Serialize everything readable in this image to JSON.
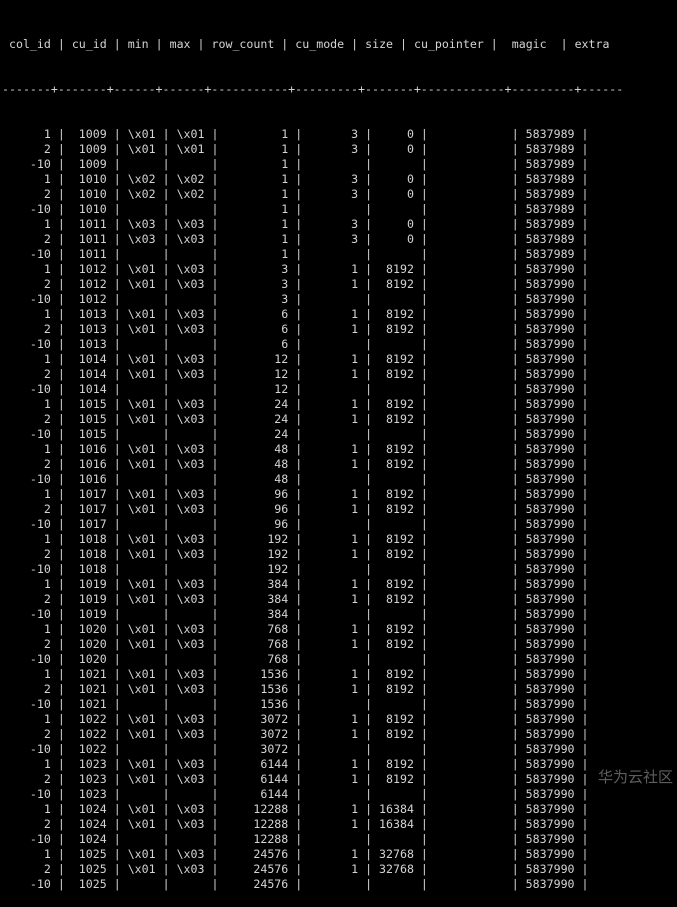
{
  "columns": [
    "col_id",
    "cu_id",
    "min",
    "max",
    "row_count",
    "cu_mode",
    "size",
    "cu_pointer",
    "magic",
    "extra"
  ],
  "widths": [
    6,
    5,
    4,
    4,
    9,
    7,
    5,
    10,
    7,
    5
  ],
  "align": [
    "r",
    "r",
    "l",
    "l",
    "r",
    "r",
    "r",
    "l",
    "r",
    "l"
  ],
  "rows": [
    [
      "1",
      "1009",
      "\\x01",
      "\\x01",
      "1",
      "3",
      "0",
      "",
      "5837989",
      ""
    ],
    [
      "2",
      "1009",
      "\\x01",
      "\\x01",
      "1",
      "3",
      "0",
      "",
      "5837989",
      ""
    ],
    [
      "-10",
      "1009",
      "",
      "",
      "1",
      "",
      "",
      "",
      "5837989",
      ""
    ],
    [
      "1",
      "1010",
      "\\x02",
      "\\x02",
      "1",
      "3",
      "0",
      "",
      "5837989",
      ""
    ],
    [
      "2",
      "1010",
      "\\x02",
      "\\x02",
      "1",
      "3",
      "0",
      "",
      "5837989",
      ""
    ],
    [
      "-10",
      "1010",
      "",
      "",
      "1",
      "",
      "",
      "",
      "5837989",
      ""
    ],
    [
      "1",
      "1011",
      "\\x03",
      "\\x03",
      "1",
      "3",
      "0",
      "",
      "5837989",
      ""
    ],
    [
      "2",
      "1011",
      "\\x03",
      "\\x03",
      "1",
      "3",
      "0",
      "",
      "5837989",
      ""
    ],
    [
      "-10",
      "1011",
      "",
      "",
      "1",
      "",
      "",
      "",
      "5837989",
      ""
    ],
    [
      "1",
      "1012",
      "\\x01",
      "\\x03",
      "3",
      "1",
      "8192",
      "",
      "5837990",
      ""
    ],
    [
      "2",
      "1012",
      "\\x01",
      "\\x03",
      "3",
      "1",
      "8192",
      "",
      "5837990",
      ""
    ],
    [
      "-10",
      "1012",
      "",
      "",
      "3",
      "",
      "",
      "",
      "5837990",
      ""
    ],
    [
      "1",
      "1013",
      "\\x01",
      "\\x03",
      "6",
      "1",
      "8192",
      "",
      "5837990",
      ""
    ],
    [
      "2",
      "1013",
      "\\x01",
      "\\x03",
      "6",
      "1",
      "8192",
      "",
      "5837990",
      ""
    ],
    [
      "-10",
      "1013",
      "",
      "",
      "6",
      "",
      "",
      "",
      "5837990",
      ""
    ],
    [
      "1",
      "1014",
      "\\x01",
      "\\x03",
      "12",
      "1",
      "8192",
      "",
      "5837990",
      ""
    ],
    [
      "2",
      "1014",
      "\\x01",
      "\\x03",
      "12",
      "1",
      "8192",
      "",
      "5837990",
      ""
    ],
    [
      "-10",
      "1014",
      "",
      "",
      "12",
      "",
      "",
      "",
      "5837990",
      ""
    ],
    [
      "1",
      "1015",
      "\\x01",
      "\\x03",
      "24",
      "1",
      "8192",
      "",
      "5837990",
      ""
    ],
    [
      "2",
      "1015",
      "\\x01",
      "\\x03",
      "24",
      "1",
      "8192",
      "",
      "5837990",
      ""
    ],
    [
      "-10",
      "1015",
      "",
      "",
      "24",
      "",
      "",
      "",
      "5837990",
      ""
    ],
    [
      "1",
      "1016",
      "\\x01",
      "\\x03",
      "48",
      "1",
      "8192",
      "",
      "5837990",
      ""
    ],
    [
      "2",
      "1016",
      "\\x01",
      "\\x03",
      "48",
      "1",
      "8192",
      "",
      "5837990",
      ""
    ],
    [
      "-10",
      "1016",
      "",
      "",
      "48",
      "",
      "",
      "",
      "5837990",
      ""
    ],
    [
      "1",
      "1017",
      "\\x01",
      "\\x03",
      "96",
      "1",
      "8192",
      "",
      "5837990",
      ""
    ],
    [
      "2",
      "1017",
      "\\x01",
      "\\x03",
      "96",
      "1",
      "8192",
      "",
      "5837990",
      ""
    ],
    [
      "-10",
      "1017",
      "",
      "",
      "96",
      "",
      "",
      "",
      "5837990",
      ""
    ],
    [
      "1",
      "1018",
      "\\x01",
      "\\x03",
      "192",
      "1",
      "8192",
      "",
      "5837990",
      ""
    ],
    [
      "2",
      "1018",
      "\\x01",
      "\\x03",
      "192",
      "1",
      "8192",
      "",
      "5837990",
      ""
    ],
    [
      "-10",
      "1018",
      "",
      "",
      "192",
      "",
      "",
      "",
      "5837990",
      ""
    ],
    [
      "1",
      "1019",
      "\\x01",
      "\\x03",
      "384",
      "1",
      "8192",
      "",
      "5837990",
      ""
    ],
    [
      "2",
      "1019",
      "\\x01",
      "\\x03",
      "384",
      "1",
      "8192",
      "",
      "5837990",
      ""
    ],
    [
      "-10",
      "1019",
      "",
      "",
      "384",
      "",
      "",
      "",
      "5837990",
      ""
    ],
    [
      "1",
      "1020",
      "\\x01",
      "\\x03",
      "768",
      "1",
      "8192",
      "",
      "5837990",
      ""
    ],
    [
      "2",
      "1020",
      "\\x01",
      "\\x03",
      "768",
      "1",
      "8192",
      "",
      "5837990",
      ""
    ],
    [
      "-10",
      "1020",
      "",
      "",
      "768",
      "",
      "",
      "",
      "5837990",
      ""
    ],
    [
      "1",
      "1021",
      "\\x01",
      "\\x03",
      "1536",
      "1",
      "8192",
      "",
      "5837990",
      ""
    ],
    [
      "2",
      "1021",
      "\\x01",
      "\\x03",
      "1536",
      "1",
      "8192",
      "",
      "5837990",
      ""
    ],
    [
      "-10",
      "1021",
      "",
      "",
      "1536",
      "",
      "",
      "",
      "5837990",
      ""
    ],
    [
      "1",
      "1022",
      "\\x01",
      "\\x03",
      "3072",
      "1",
      "8192",
      "",
      "5837990",
      ""
    ],
    [
      "2",
      "1022",
      "\\x01",
      "\\x03",
      "3072",
      "1",
      "8192",
      "",
      "5837990",
      ""
    ],
    [
      "-10",
      "1022",
      "",
      "",
      "3072",
      "",
      "",
      "",
      "5837990",
      ""
    ],
    [
      "1",
      "1023",
      "\\x01",
      "\\x03",
      "6144",
      "1",
      "8192",
      "",
      "5837990",
      ""
    ],
    [
      "2",
      "1023",
      "\\x01",
      "\\x03",
      "6144",
      "1",
      "8192",
      "",
      "5837990",
      ""
    ],
    [
      "-10",
      "1023",
      "",
      "",
      "6144",
      "",
      "",
      "",
      "5837990",
      ""
    ],
    [
      "1",
      "1024",
      "\\x01",
      "\\x03",
      "12288",
      "1",
      "16384",
      "",
      "5837990",
      ""
    ],
    [
      "2",
      "1024",
      "\\x01",
      "\\x03",
      "12288",
      "1",
      "16384",
      "",
      "5837990",
      ""
    ],
    [
      "-10",
      "1024",
      "",
      "",
      "12288",
      "",
      "",
      "",
      "5837990",
      ""
    ],
    [
      "1",
      "1025",
      "\\x01",
      "\\x03",
      "24576",
      "1",
      "32768",
      "",
      "5837990",
      ""
    ],
    [
      "2",
      "1025",
      "\\x01",
      "\\x03",
      "24576",
      "1",
      "32768",
      "",
      "5837990",
      ""
    ],
    [
      "-10",
      "1025",
      "",
      "",
      "24576",
      "",
      "",
      "",
      "5837990",
      ""
    ]
  ],
  "watermark": "华为云社区",
  "colors": {
    "background": "#000000",
    "text": "#d4d4d4"
  }
}
